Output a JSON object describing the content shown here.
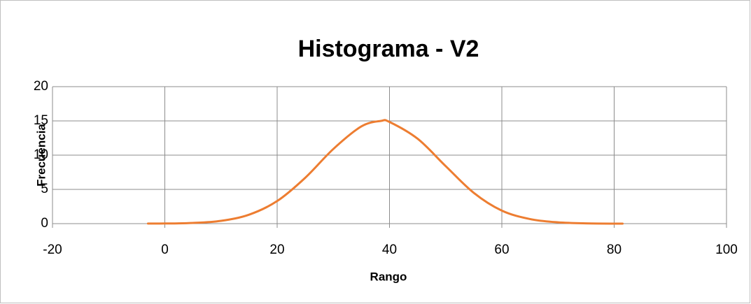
{
  "chart_data": {
    "type": "line",
    "title": "Histograma - V2",
    "x_label": "Rango",
    "y_label": "Frecuencia",
    "series": [
      {
        "color": "#ed7d31",
        "x": [
          -3,
          0,
          5,
          10,
          15,
          20,
          25,
          30,
          35,
          38.5,
          40,
          45,
          50,
          55,
          60,
          65,
          70,
          75,
          81.5
        ],
        "values": [
          0.01,
          0.02,
          0.1,
          0.41,
          1.31,
          3.3,
          6.7,
          10.9,
          14.2,
          15,
          14.85,
          12.4,
          8.4,
          4.5,
          1.9,
          0.67,
          0.19,
          0.04,
          0
        ]
      }
    ],
    "xlim": [
      -20,
      100
    ],
    "xticks": [
      -20,
      0,
      20,
      40,
      60,
      80,
      100
    ],
    "ylim": [
      0,
      20
    ],
    "yticks": [
      0,
      5,
      10,
      15,
      20
    ],
    "grid": true
  }
}
